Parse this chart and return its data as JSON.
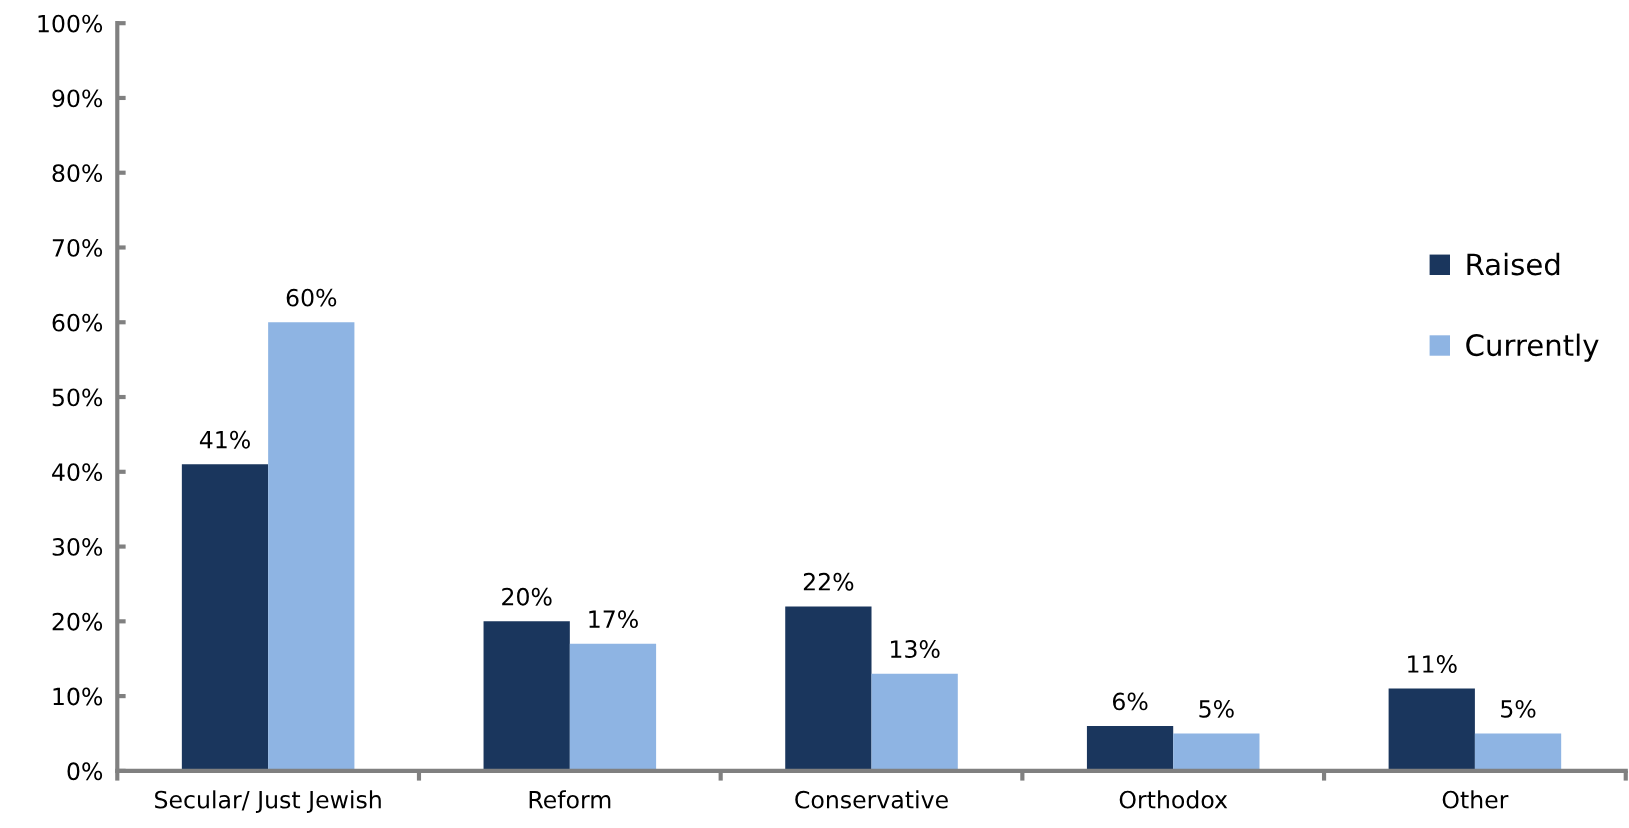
{
  "chart_data": {
    "type": "bar",
    "categories": [
      "Secular/ Just Jewish",
      "Reform",
      "Conservative",
      "Orthodox",
      "Other"
    ],
    "series": [
      {
        "name": "Raised",
        "color": "#1a365d",
        "values": [
          41,
          20,
          22,
          6,
          11
        ],
        "value_labels": [
          "41%",
          "20%",
          "22%",
          "6%",
          "11%"
        ]
      },
      {
        "name": "Currently",
        "color": "#8eb4e3",
        "values": [
          60,
          17,
          13,
          5,
          5
        ],
        "value_labels": [
          "60%",
          "17%",
          "13%",
          "5%",
          "5%"
        ]
      }
    ],
    "ylim": [
      0,
      100
    ],
    "yticks": [
      {
        "value": 0,
        "label": "0%"
      },
      {
        "value": 10,
        "label": "10%"
      },
      {
        "value": 20,
        "label": "20%"
      },
      {
        "value": 30,
        "label": "30%"
      },
      {
        "value": 40,
        "label": "40%"
      },
      {
        "value": 50,
        "label": "50%"
      },
      {
        "value": 60,
        "label": "60%"
      },
      {
        "value": 70,
        "label": "70%"
      },
      {
        "value": 80,
        "label": "80%"
      },
      {
        "value": 90,
        "label": "90%"
      },
      {
        "value": 100,
        "label": "100%"
      }
    ],
    "grid": false,
    "legend": "right"
  }
}
